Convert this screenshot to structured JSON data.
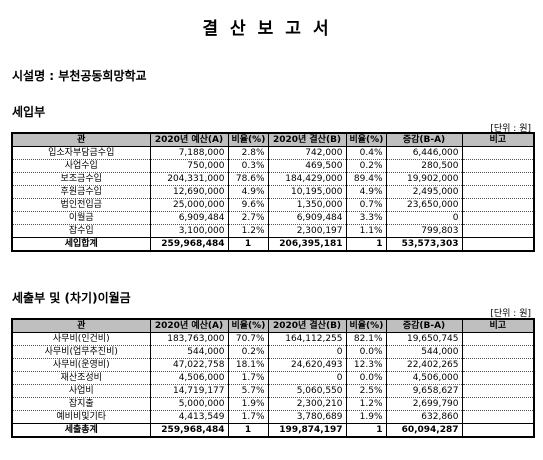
{
  "title": "결산보고서",
  "facility": "시설명 : 부천공동희망학교",
  "income": {
    "section": "세입부",
    "unit": "[단위 : 원]",
    "headers": [
      "관",
      "2020년 예산(A)",
      "비율(%)",
      "2020년 결산(B)",
      "비율(%)",
      "증감(B-A)",
      "비고"
    ],
    "rows": [
      [
        "입소자부담금수입",
        "7,188,000",
        "2.8%",
        "742,000",
        "0.4%",
        "6,446,000",
        ""
      ],
      [
        "사업수입",
        "750,000",
        "0.3%",
        "469,500",
        "0.2%",
        "280,500",
        ""
      ],
      [
        "보조금수입",
        "204,331,000",
        "78.6%",
        "184,429,000",
        "89.4%",
        "19,902,000",
        ""
      ],
      [
        "후원금수입",
        "12,690,000",
        "4.9%",
        "10,195,000",
        "4.9%",
        "2,495,000",
        ""
      ],
      [
        "법인전입금",
        "25,000,000",
        "9.6%",
        "1,350,000",
        "0.7%",
        "23,650,000",
        ""
      ],
      [
        "이월금",
        "6,909,484",
        "2.7%",
        "6,909,484",
        "3.3%",
        "0",
        ""
      ],
      [
        "잡수입",
        "3,100,000",
        "1.2%",
        "2,300,197",
        "1.1%",
        "799,803",
        ""
      ]
    ],
    "total": [
      "세입합계",
      "259,968,484",
      "1",
      "206,395,181",
      "1",
      "53,573,303",
      ""
    ]
  },
  "expense": {
    "section": "세출부 및 (차기)이월금",
    "unit": "[단위 : 원]",
    "headers": [
      "관",
      "2020년 예산(A)",
      "비율(%)",
      "2020년 결산(B)",
      "비율(%)",
      "증감(B-A)",
      "비고"
    ],
    "rows": [
      [
        "사무비(인건비)",
        "183,763,000",
        "70.7%",
        "164,112,255",
        "82.1%",
        "19,650,745",
        ""
      ],
      [
        "사무비(업무추진비)",
        "544,000",
        "0.2%",
        "0",
        "0.0%",
        "544,000",
        ""
      ],
      [
        "사무비(운영비)",
        "47,022,758",
        "18.1%",
        "24,620,493",
        "12.3%",
        "22,402,265",
        ""
      ],
      [
        "재산조성비",
        "4,506,000",
        "1.7%",
        "0",
        "0.0%",
        "4,506,000",
        ""
      ],
      [
        "사업비",
        "14,719,177",
        "5.7%",
        "5,060,550",
        "2.5%",
        "9,658,627",
        ""
      ],
      [
        "잡지출",
        "5,000,000",
        "1.9%",
        "2,300,210",
        "1.2%",
        "2,699,790",
        ""
      ],
      [
        "예비비및기타",
        "4,413,549",
        "1.7%",
        "3,780,689",
        "1.9%",
        "632,860",
        ""
      ]
    ],
    "total": [
      "세출총계",
      "259,968,484",
      "1",
      "199,874,197",
      "1",
      "60,094,287",
      ""
    ]
  }
}
